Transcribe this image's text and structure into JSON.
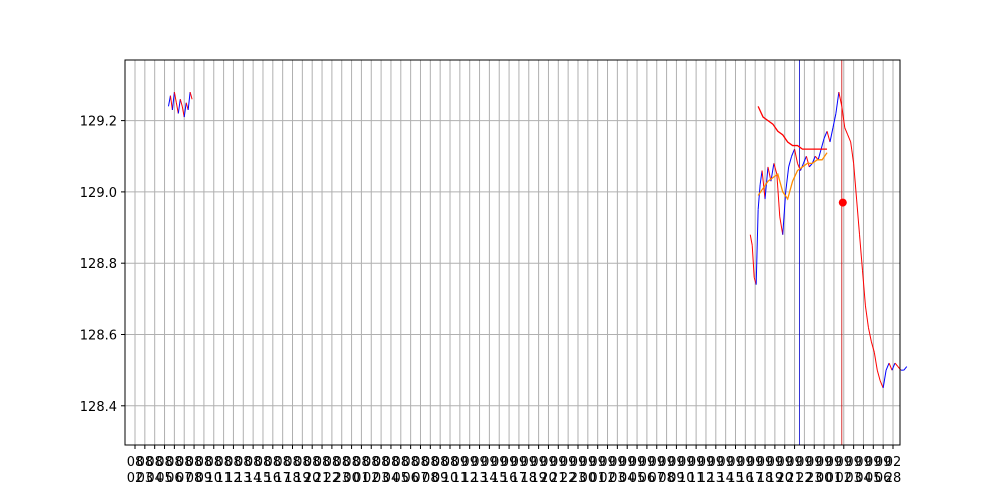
{
  "chart_data": {
    "type": "line",
    "title": "",
    "xlabel": "",
    "ylabel": "",
    "ylim": [
      128.29,
      129.37
    ],
    "y_ticks": [
      128.4,
      128.6,
      128.8,
      129.0,
      129.2
    ],
    "y_tick_labels": [
      "128.4",
      "128.6",
      "128.8",
      "129.0",
      "129.2"
    ],
    "x_tick_count": 78,
    "x_tick_labels_top": [
      "08",
      "08",
      "08",
      "08",
      "08",
      "08",
      "08",
      "08",
      "08",
      "08",
      "08",
      "08",
      "08",
      "08",
      "08",
      "08",
      "08",
      "08",
      "08",
      "08",
      "08",
      "08",
      "08",
      "08",
      "08",
      "08",
      "08",
      "08",
      "08",
      "08",
      "08",
      "08",
      "08",
      "09",
      "09",
      "09",
      "09",
      "09",
      "09",
      "09",
      "09",
      "09",
      "09",
      "09",
      "09",
      "09",
      "09",
      "09",
      "09",
      "09",
      "09",
      "09",
      "09",
      "09",
      "09",
      "09",
      "09",
      "09",
      "09",
      "09",
      "09",
      "09",
      "09",
      "09",
      "09",
      "09",
      "09",
      "09",
      "09",
      "09",
      "09",
      "09",
      "09",
      "09",
      "09",
      "09",
      "09",
      "02"
    ],
    "x_tick_labels_bottom": [
      "02",
      "03",
      "04",
      "05",
      "06",
      "07",
      "08",
      "09",
      "10",
      "11",
      "12",
      "13",
      "14",
      "15",
      "16",
      "17",
      "18",
      "19",
      "20",
      "21",
      "22",
      "23",
      "00",
      "01",
      "02",
      "03",
      "04",
      "05",
      "06",
      "07",
      "08",
      "09",
      "10",
      "11",
      "12",
      "13",
      "14",
      "15",
      "16",
      "17",
      "18",
      "19",
      "20",
      "21",
      "22",
      "23",
      "00",
      "01",
      "02",
      "03",
      "04",
      "05",
      "06",
      "07",
      "08",
      "09",
      "10",
      "11",
      "12",
      "13",
      "14",
      "15",
      "16",
      "17",
      "18",
      "19",
      "20",
      "21",
      "22",
      "23",
      "00",
      "01",
      "02",
      "03",
      "04",
      "05",
      "06",
      "28"
    ],
    "grid": true,
    "legend": "none",
    "colors": {
      "price_up": "#0000ff",
      "price_down": "#ff0000",
      "ma_fast": "#ff8c00",
      "ma_slow": "#ff0000",
      "marker": "#ff0000",
      "vline_blue": "#0000cc",
      "vline_red": "#cc0000",
      "grid": "#b0b0b0"
    },
    "series": [
      {
        "kind": "price",
        "x": [
          3.4,
          3.6,
          3.8,
          4.0,
          4.2,
          4.4,
          4.6,
          4.8,
          5.0,
          5.2,
          5.4,
          5.6,
          5.8
        ],
        "y": [
          129.24,
          129.27,
          129.23,
          129.28,
          129.25,
          129.22,
          129.26,
          129.24,
          129.21,
          129.25,
          129.23,
          129.28,
          129.26
        ]
      },
      {
        "kind": "price",
        "x": [
          62.5,
          62.7,
          62.9,
          63.1,
          63.3,
          63.5,
          63.7,
          64.0,
          64.3,
          64.6,
          64.9,
          65.2,
          65.5,
          65.8,
          66.1,
          66.4,
          66.7,
          67.0,
          67.3,
          67.6,
          67.9,
          68.2,
          68.5,
          68.8,
          69.1,
          69.4,
          69.7,
          70.0,
          70.3,
          70.6,
          70.9,
          71.2,
          71.5,
          71.8,
          72.1,
          72.4,
          72.7,
          73.0,
          73.3,
          73.6,
          73.9,
          74.2,
          74.5,
          74.8,
          75.1,
          75.4,
          75.7,
          76.0,
          76.3,
          76.6,
          76.9,
          77.2,
          77.5,
          77.8,
          78.1,
          78.4
        ],
        "y": [
          128.88,
          128.85,
          128.76,
          128.74,
          128.95,
          129.02,
          129.06,
          128.98,
          129.07,
          129.03,
          129.08,
          129.05,
          128.93,
          128.88,
          129.0,
          129.07,
          129.1,
          129.12,
          129.08,
          129.06,
          129.08,
          129.1,
          129.07,
          129.08,
          129.1,
          129.09,
          129.12,
          129.15,
          129.17,
          129.14,
          129.18,
          129.22,
          129.28,
          129.24,
          129.18,
          129.16,
          129.14,
          129.08,
          128.98,
          128.88,
          128.78,
          128.68,
          128.62,
          128.58,
          128.55,
          128.5,
          128.47,
          128.45,
          128.5,
          128.52,
          128.5,
          128.52,
          128.51,
          128.5,
          128.5,
          128.51
        ]
      },
      {
        "kind": "ma_fast",
        "x": [
          63.3,
          63.8,
          64.3,
          64.8,
          65.3,
          65.8,
          66.3,
          66.8,
          67.3,
          67.8,
          68.3,
          68.8,
          69.3,
          69.8,
          70.3
        ],
        "y": [
          128.99,
          129.01,
          129.03,
          129.04,
          129.05,
          129.0,
          128.98,
          129.03,
          129.06,
          129.07,
          129.08,
          129.08,
          129.09,
          129.09,
          129.11
        ]
      },
      {
        "kind": "ma_slow",
        "x": [
          63.3,
          63.8,
          64.3,
          64.8,
          65.3,
          65.8,
          66.3,
          66.8,
          67.3,
          67.8,
          68.3,
          68.8,
          69.3,
          69.8,
          70.3
        ],
        "y": [
          129.24,
          129.21,
          129.2,
          129.19,
          129.17,
          129.16,
          129.14,
          129.13,
          129.13,
          129.12,
          129.12,
          129.12,
          129.12,
          129.12,
          129.12
        ]
      }
    ],
    "vlines": [
      {
        "x": 67.5,
        "color": "vline_blue"
      },
      {
        "x": 71.8,
        "color": "vline_red"
      }
    ],
    "marker": {
      "x": 71.9,
      "y": 128.97
    }
  }
}
